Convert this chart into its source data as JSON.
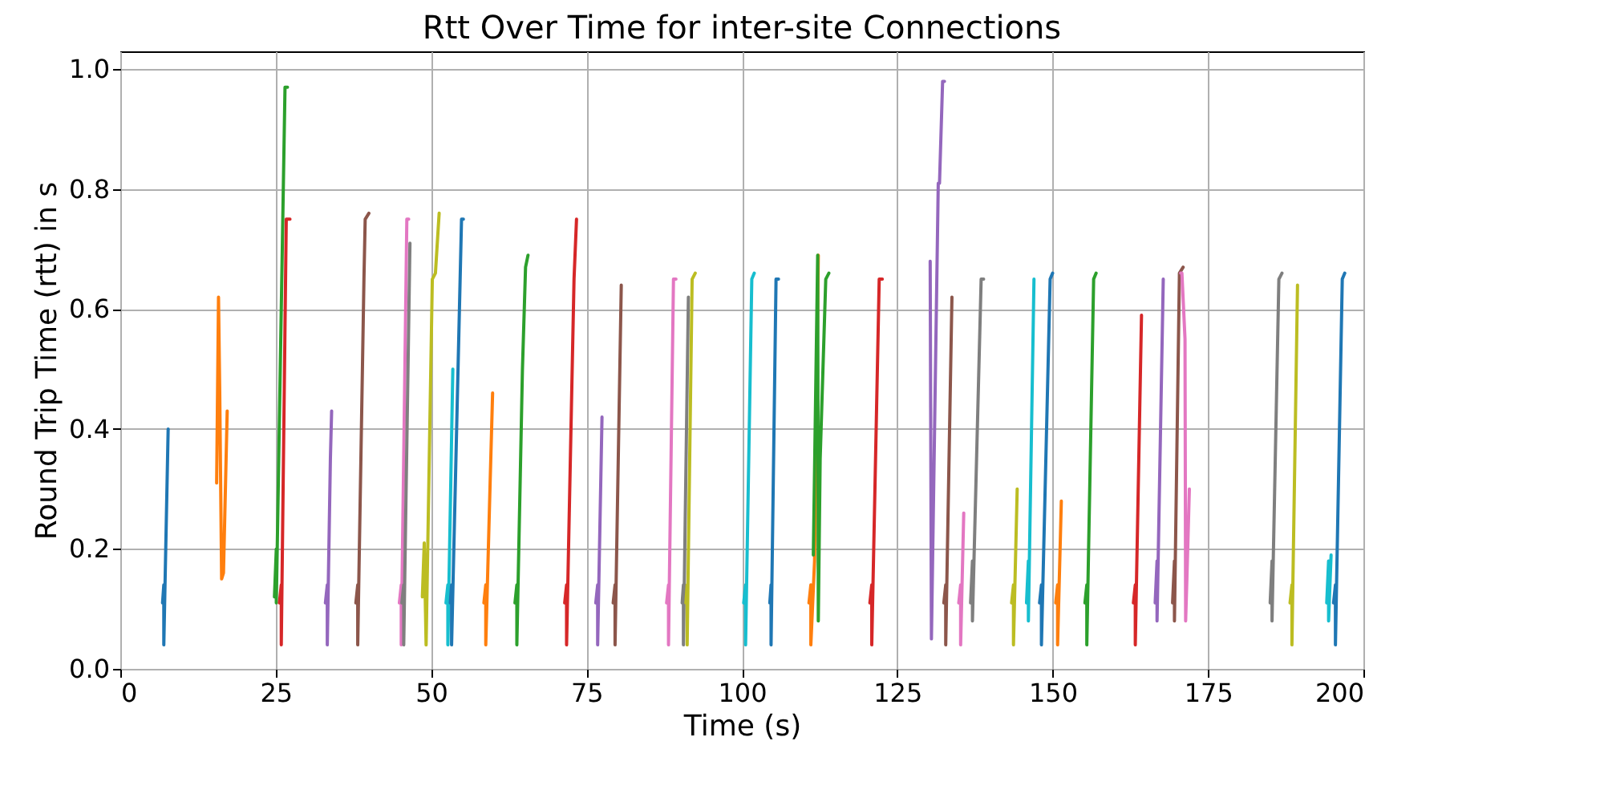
{
  "chart_data": {
    "type": "line",
    "title": "Rtt Over Time for inter-site Connections",
    "xlabel": "Time (s)",
    "ylabel": "Round Trip Time (rtt) in s",
    "xlim": [
      0,
      200
    ],
    "xticks": [
      0,
      25,
      50,
      75,
      100,
      125,
      150,
      175,
      200
    ],
    "ylim": [
      0,
      1.03
    ],
    "yticks": [
      {
        "value": 0,
        "label": "0.0"
      },
      0.2,
      0.4,
      0.6,
      0.8,
      {
        "value": 1,
        "label": "1.0"
      }
    ],
    "grid": true,
    "legend": false,
    "series": [
      {
        "color": "#1f77b4",
        "x": [
          6.8,
          7.0,
          7.0,
          7.7
        ],
        "values": [
          0.11,
          0.14,
          0.04,
          0.4
        ]
      },
      {
        "color": "#ff7f0e",
        "x": [
          15.5,
          15.8,
          16.0,
          16.3,
          16.6,
          17.2
        ],
        "values": [
          0.31,
          0.62,
          0.46,
          0.15,
          0.16,
          0.43
        ]
      },
      {
        "color": "#2ca02c",
        "x": [
          24.8,
          25.1,
          25.1,
          26.5,
          26.9
        ],
        "values": [
          0.12,
          0.2,
          0.11,
          0.97,
          0.97
        ]
      },
      {
        "color": "#d62728",
        "x": [
          25.6,
          25.9,
          25.9,
          26.7,
          27.3
        ],
        "values": [
          0.11,
          0.14,
          0.04,
          0.75,
          0.75
        ]
      },
      {
        "color": "#9467bd",
        "x": [
          33.0,
          33.3,
          33.3,
          33.8,
          34.0
        ],
        "values": [
          0.11,
          0.14,
          0.04,
          0.35,
          0.43
        ]
      },
      {
        "color": "#8c564b",
        "x": [
          37.9,
          38.2,
          38.2,
          39.2,
          39.4,
          40.0
        ],
        "values": [
          0.11,
          0.14,
          0.04,
          0.65,
          0.75,
          0.76
        ]
      },
      {
        "color": "#e377c2",
        "x": [
          44.9,
          45.2,
          45.2,
          46.1,
          46.4
        ],
        "values": [
          0.11,
          0.14,
          0.04,
          0.75,
          0.75
        ]
      },
      {
        "color": "#7f7f7f",
        "x": [
          45.3,
          45.6,
          45.6,
          46.6
        ],
        "values": [
          0.11,
          0.14,
          0.04,
          0.71
        ]
      },
      {
        "color": "#bcbd22",
        "x": [
          48.6,
          48.9,
          49.2,
          50.2,
          50.7,
          51.3
        ],
        "values": [
          0.12,
          0.21,
          0.04,
          0.65,
          0.66,
          0.76
        ]
      },
      {
        "color": "#17becf",
        "x": [
          52.4,
          52.7,
          52.7,
          53.5
        ],
        "values": [
          0.11,
          0.14,
          0.04,
          0.5
        ]
      },
      {
        "color": "#1f77b4",
        "x": [
          53.1,
          53.3,
          53.3,
          54.9,
          55.2
        ],
        "values": [
          0.11,
          0.14,
          0.04,
          0.75,
          0.75
        ]
      },
      {
        "color": "#ff7f0e",
        "x": [
          58.5,
          58.8,
          58.8,
          59.5,
          59.9
        ],
        "values": [
          0.11,
          0.14,
          0.04,
          0.31,
          0.46
        ]
      },
      {
        "color": "#2ca02c",
        "x": [
          63.5,
          63.8,
          63.8,
          64.7,
          65.2,
          65.6
        ],
        "values": [
          0.11,
          0.14,
          0.04,
          0.5,
          0.67,
          0.69
        ]
      },
      {
        "color": "#d62728",
        "x": [
          71.5,
          71.8,
          71.8,
          73.0,
          73.4
        ],
        "values": [
          0.11,
          0.14,
          0.04,
          0.65,
          0.75
        ]
      },
      {
        "color": "#9467bd",
        "x": [
          76.5,
          76.8,
          76.8,
          77.5
        ],
        "values": [
          0.11,
          0.14,
          0.04,
          0.42
        ]
      },
      {
        "color": "#8c564b",
        "x": [
          79.3,
          79.6,
          79.6,
          80.6
        ],
        "values": [
          0.11,
          0.14,
          0.04,
          0.64
        ]
      },
      {
        "color": "#e377c2",
        "x": [
          87.9,
          88.2,
          88.2,
          89.0,
          89.4
        ],
        "values": [
          0.11,
          0.14,
          0.04,
          0.65,
          0.65
        ]
      },
      {
        "color": "#7f7f7f",
        "x": [
          90.4,
          90.6,
          90.6,
          91.4
        ],
        "values": [
          0.11,
          0.14,
          0.04,
          0.62
        ]
      },
      {
        "color": "#bcbd22",
        "x": [
          91.0,
          91.2,
          91.2,
          92.0,
          92.5
        ],
        "values": [
          0.11,
          0.14,
          0.04,
          0.65,
          0.66
        ]
      },
      {
        "color": "#17becf",
        "x": [
          100.3,
          100.6,
          100.6,
          101.6,
          102.0
        ],
        "values": [
          0.11,
          0.14,
          0.04,
          0.65,
          0.66
        ]
      },
      {
        "color": "#1f77b4",
        "x": [
          104.5,
          104.7,
          104.7,
          105.5,
          105.9
        ],
        "values": [
          0.11,
          0.14,
          0.04,
          0.65,
          0.65
        ]
      },
      {
        "color": "#ff7f0e",
        "x": [
          110.8,
          111.1,
          111.1,
          111.7,
          112.3
        ],
        "values": [
          0.11,
          0.14,
          0.04,
          0.18,
          0.69
        ]
      },
      {
        "color": "#2ca02c",
        "x": [
          111.5,
          112.2,
          112.3,
          112.6,
          113.5,
          114.0
        ],
        "values": [
          0.19,
          0.69,
          0.08,
          0.35,
          0.65,
          0.66
        ]
      },
      {
        "color": "#d62728",
        "x": [
          120.6,
          120.9,
          120.9,
          122.1,
          122.6
        ],
        "values": [
          0.11,
          0.14,
          0.04,
          0.65,
          0.65
        ]
      },
      {
        "color": "#9467bd",
        "x": [
          130.3,
          130.5,
          131.6,
          131.8,
          132.3,
          132.6
        ],
        "values": [
          0.68,
          0.05,
          0.81,
          0.81,
          0.98,
          0.98
        ]
      },
      {
        "color": "#8c564b",
        "x": [
          132.5,
          132.8,
          132.8,
          133.8
        ],
        "values": [
          0.11,
          0.14,
          0.04,
          0.62
        ]
      },
      {
        "color": "#e377c2",
        "x": [
          134.9,
          135.2,
          135.2,
          135.7
        ],
        "values": [
          0.11,
          0.14,
          0.04,
          0.26
        ]
      },
      {
        "color": "#7f7f7f",
        "x": [
          136.8,
          137.1,
          137.1,
          138.5,
          138.9
        ],
        "values": [
          0.11,
          0.18,
          0.08,
          0.65,
          0.65
        ]
      },
      {
        "color": "#bcbd22",
        "x": [
          143.4,
          143.7,
          143.7,
          144.3
        ],
        "values": [
          0.11,
          0.14,
          0.04,
          0.3
        ]
      },
      {
        "color": "#17becf",
        "x": [
          145.8,
          146.1,
          146.1,
          147.0
        ],
        "values": [
          0.11,
          0.18,
          0.08,
          0.65
        ]
      },
      {
        "color": "#1f77b4",
        "x": [
          147.9,
          148.2,
          148.2,
          149.6,
          150.0
        ],
        "values": [
          0.11,
          0.14,
          0.04,
          0.65,
          0.66
        ]
      },
      {
        "color": "#ff7f0e",
        "x": [
          150.5,
          150.8,
          150.8,
          151.4
        ],
        "values": [
          0.11,
          0.14,
          0.04,
          0.28
        ]
      },
      {
        "color": "#2ca02c",
        "x": [
          155.2,
          155.5,
          155.5,
          156.6,
          157.0
        ],
        "values": [
          0.11,
          0.14,
          0.04,
          0.65,
          0.66
        ]
      },
      {
        "color": "#d62728",
        "x": [
          163.0,
          163.3,
          163.3,
          164.3
        ],
        "values": [
          0.11,
          0.14,
          0.04,
          0.59
        ]
      },
      {
        "color": "#9467bd",
        "x": [
          166.5,
          166.8,
          166.8,
          167.8
        ],
        "values": [
          0.11,
          0.18,
          0.08,
          0.65
        ]
      },
      {
        "color": "#8c564b",
        "x": [
          169.3,
          169.6,
          169.6,
          170.4,
          171.0
        ],
        "values": [
          0.11,
          0.18,
          0.08,
          0.66,
          0.67
        ]
      },
      {
        "color": "#e377c2",
        "x": [
          170.6,
          170.8,
          171.3,
          171.4,
          171.6,
          172.0
        ],
        "values": [
          0.66,
          0.66,
          0.55,
          0.08,
          0.15,
          0.3
        ]
      },
      {
        "color": "#7f7f7f",
        "x": [
          185.0,
          185.3,
          185.3,
          186.4,
          186.9
        ],
        "values": [
          0.11,
          0.18,
          0.08,
          0.65,
          0.66
        ]
      },
      {
        "color": "#bcbd22",
        "x": [
          188.2,
          188.5,
          188.5,
          189.4
        ],
        "values": [
          0.11,
          0.14,
          0.04,
          0.64
        ]
      },
      {
        "color": "#17becf",
        "x": [
          194.1,
          194.4,
          194.4,
          194.8
        ],
        "values": [
          0.11,
          0.18,
          0.08,
          0.19
        ]
      },
      {
        "color": "#1f77b4",
        "x": [
          195.2,
          195.5,
          195.5,
          196.6,
          197.0
        ],
        "values": [
          0.11,
          0.14,
          0.04,
          0.65,
          0.66
        ]
      }
    ]
  }
}
